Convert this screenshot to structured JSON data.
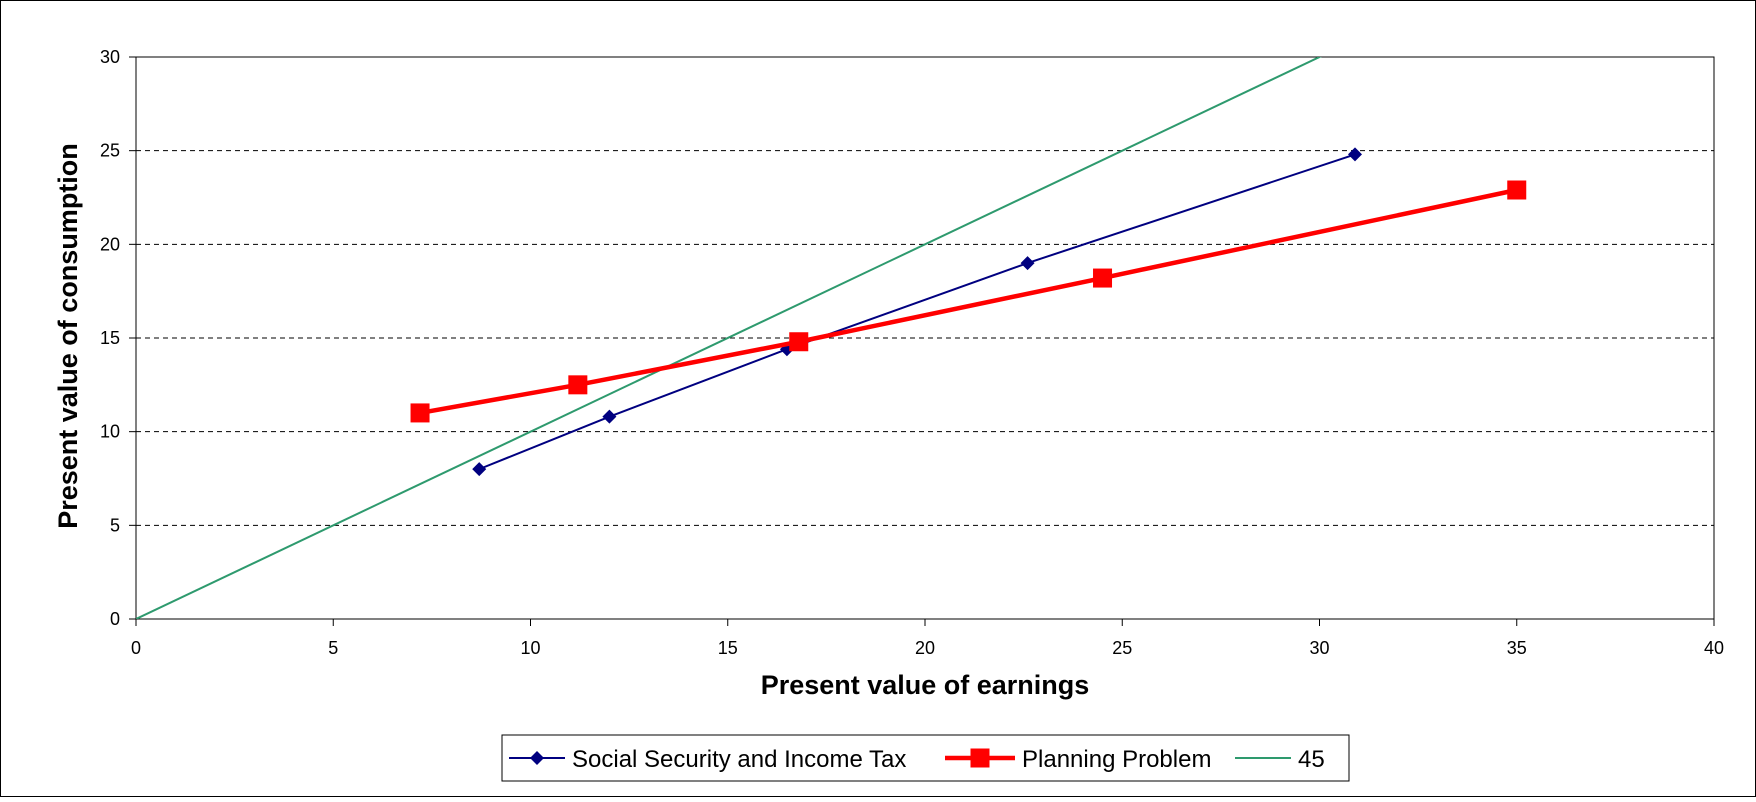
{
  "chart_data": {
    "type": "line",
    "xlabel": "Present value of earnings",
    "ylabel": "Present value of consumption",
    "xlim": [
      0,
      40
    ],
    "ylim": [
      0,
      30
    ],
    "x_ticks": [
      0,
      5,
      10,
      15,
      20,
      25,
      30,
      35,
      40
    ],
    "y_ticks": [
      0,
      5,
      10,
      15,
      20,
      25,
      30
    ],
    "x_tick_labels": [
      "0",
      "5",
      "10",
      "15",
      "20",
      "25",
      "30",
      "35",
      "40"
    ],
    "y_tick_labels": [
      "0",
      "5",
      "10",
      "15",
      "20",
      "25",
      "30"
    ],
    "grid": "horizontal dashed",
    "legend_position": "bottom",
    "series": [
      {
        "name": "Social Security and Income Tax",
        "color": "#000080",
        "marker": "diamond",
        "points": [
          [
            8.7,
            8.0
          ],
          [
            12.0,
            10.8
          ],
          [
            16.5,
            14.4
          ],
          [
            22.6,
            19.0
          ],
          [
            30.9,
            24.8
          ]
        ]
      },
      {
        "name": "Planning Problem",
        "color": "#FF0000",
        "marker": "square",
        "points": [
          [
            7.2,
            11.0
          ],
          [
            11.2,
            12.5
          ],
          [
            16.8,
            14.8
          ],
          [
            24.5,
            18.2
          ],
          [
            35.0,
            22.9
          ]
        ]
      },
      {
        "name": "45",
        "color": "#2E9A6E",
        "marker": "none",
        "points": [
          [
            0,
            0
          ],
          [
            30.6,
            30.6
          ]
        ]
      }
    ]
  }
}
